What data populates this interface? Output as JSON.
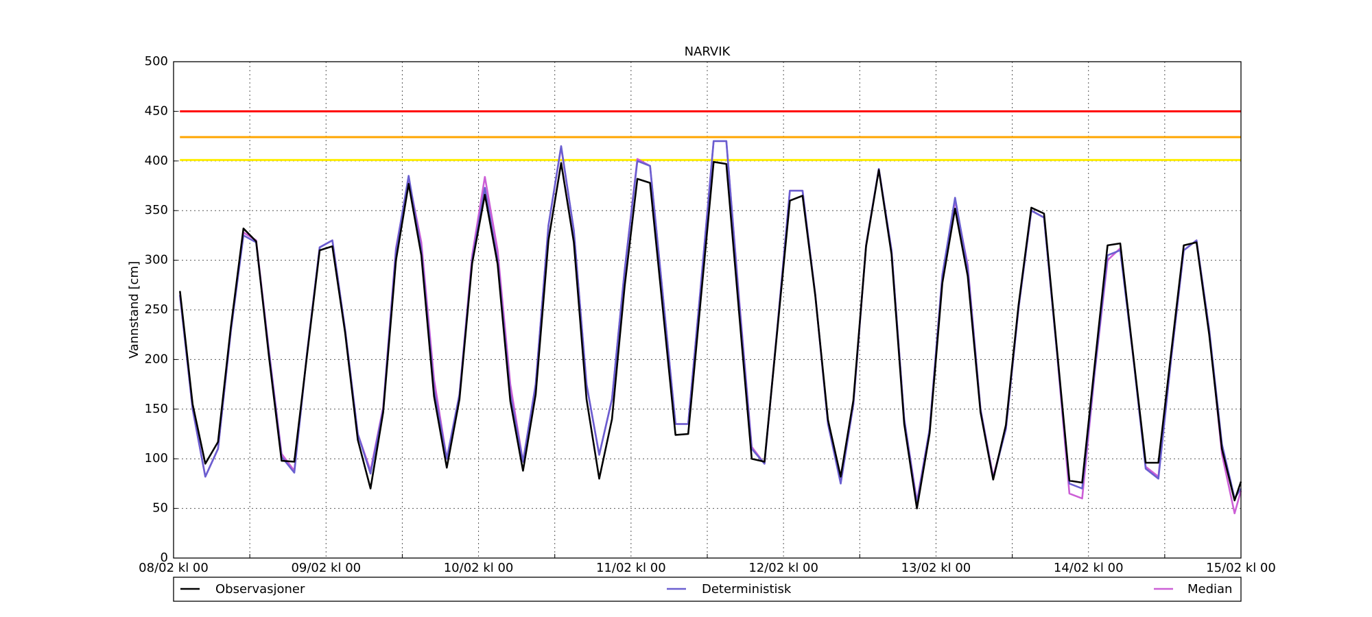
{
  "chart_data": {
    "type": "line",
    "title": "NARVIK",
    "y_label": "Vannstand [cm]",
    "xlim": [
      0,
      168
    ],
    "xticks": [
      {
        "value": 0,
        "label": "08/02 kl 00"
      },
      {
        "value": 24,
        "label": "09/02 kl 00"
      },
      {
        "value": 48,
        "label": "10/02 kl 00"
      },
      {
        "value": 72,
        "label": "11/02 kl 00"
      },
      {
        "value": 96,
        "label": "12/02 kl 00"
      },
      {
        "value": 120,
        "label": "13/02 kl 00"
      },
      {
        "value": 144,
        "label": "14/02 kl 00"
      },
      {
        "value": 168,
        "label": "15/02 kl 00"
      }
    ],
    "xminor": [
      12,
      36,
      60,
      84,
      108,
      132,
      156
    ],
    "ylim": [
      0,
      500
    ],
    "yticks": [
      0,
      50,
      100,
      150,
      200,
      250,
      300,
      350,
      400,
      450,
      500
    ],
    "grid": true,
    "thresholds": [
      {
        "value": 450,
        "color": "#ff0000"
      },
      {
        "value": 424,
        "color": "#ffa500"
      },
      {
        "value": 401,
        "color": "#ffee00"
      }
    ],
    "x": [
      1,
      3,
      5,
      7,
      9,
      11,
      13,
      15,
      17,
      19,
      21,
      23,
      25,
      27,
      29,
      31,
      33,
      35,
      37,
      39,
      41,
      43,
      45,
      47,
      49,
      51,
      53,
      55,
      57,
      59,
      61,
      63,
      65,
      67,
      69,
      71,
      73,
      75,
      77,
      79,
      81,
      83,
      85,
      87,
      89,
      91,
      93,
      95,
      97,
      99,
      101,
      103,
      105,
      107,
      109,
      111,
      113,
      115,
      117,
      119,
      121,
      123,
      125,
      127,
      129,
      131,
      133,
      135,
      137,
      139,
      141,
      143,
      145,
      147,
      149,
      151,
      153,
      155,
      157,
      159,
      161,
      163,
      165,
      167,
      168
    ],
    "series": [
      {
        "name": "Median",
        "color": "#cc5fd6",
        "values": [
          265,
          150,
          82,
          110,
          228,
          328,
          320,
          210,
          105,
          88,
          206,
          313,
          320,
          230,
          125,
          88,
          152,
          312,
          382,
          318,
          180,
          100,
          165,
          305,
          384,
          310,
          175,
          97,
          175,
          335,
          414,
          330,
          175,
          104,
          160,
          290,
          402,
          395,
          265,
          135,
          135,
          275,
          420,
          420,
          262,
          112,
          95,
          230,
          370,
          370,
          265,
          135,
          76,
          155,
          315,
          392,
          310,
          140,
          57,
          130,
          285,
          360,
          295,
          150,
          82,
          130,
          252,
          350,
          343,
          210,
          65,
          60,
          188,
          300,
          312,
          205,
          92,
          82,
          200,
          310,
          320,
          230,
          105,
          45,
          68
        ]
      },
      {
        "name": "Deterministisk",
        "color": "#6a5fd0",
        "values": [
          265,
          150,
          82,
          110,
          228,
          325,
          318,
          208,
          102,
          86,
          206,
          313,
          320,
          230,
          125,
          85,
          150,
          310,
          385,
          310,
          170,
          100,
          165,
          300,
          373,
          300,
          165,
          97,
          175,
          335,
          415,
          330,
          175,
          104,
          160,
          290,
          400,
          395,
          265,
          135,
          135,
          275,
          420,
          420,
          260,
          110,
          95,
          230,
          370,
          370,
          265,
          135,
          75,
          155,
          315,
          392,
          310,
          140,
          55,
          130,
          285,
          363,
          292,
          150,
          80,
          130,
          252,
          350,
          343,
          210,
          75,
          70,
          190,
          305,
          310,
          205,
          90,
          80,
          200,
          310,
          320,
          230,
          115,
          60,
          70
        ]
      },
      {
        "name": "Observasjoner",
        "color": "#000000",
        "values": [
          269,
          155,
          95,
          117,
          232,
          332,
          319,
          204,
          98,
          97,
          204,
          310,
          314,
          227,
          119,
          70,
          147,
          300,
          377,
          305,
          163,
          91,
          160,
          297,
          366,
          296,
          158,
          88,
          165,
          320,
          398,
          318,
          160,
          80,
          140,
          274,
          382,
          378,
          251,
          124,
          125,
          262,
          399,
          397,
          248,
          100,
          97,
          228,
          360,
          365,
          264,
          139,
          82,
          159,
          314,
          391,
          306,
          135,
          50,
          126,
          277,
          352,
          284,
          147,
          79,
          134,
          255,
          353,
          347,
          213,
          78,
          76,
          196,
          315,
          317,
          207,
          96,
          96,
          206,
          315,
          318,
          225,
          110,
          58,
          77
        ]
      }
    ]
  }
}
